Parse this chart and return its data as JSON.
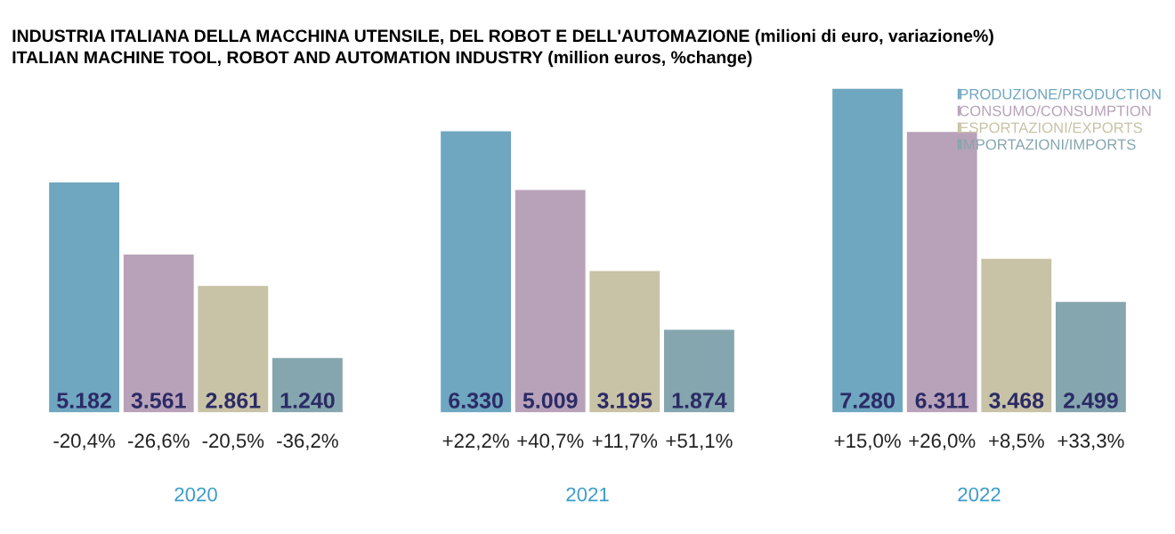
{
  "chart_data": {
    "type": "bar",
    "title": "INDUSTRIA ITALIANA DELLA MACCHINA UTENSILE, DEL ROBOT E DELL'AUTOMAZIONE (milioni di euro, variazione%)",
    "subtitle": "ITALIAN MACHINE TOOL, ROBOT AND AUTOMATION INDUSTRY (million euros, %change)",
    "categories": [
      "2020",
      "2021",
      "2022"
    ],
    "series": [
      {
        "name": "PRODUZIONE/PRODUCTION",
        "color": "#6fa6c0",
        "values": [
          5182,
          6330,
          7280
        ],
        "value_labels": [
          "5.182",
          "6.330",
          "7.280"
        ]
      },
      {
        "name": "CONSUMO/CONSUMPTION",
        "color": "#b8a2b9",
        "values": [
          3561,
          5009,
          6311
        ],
        "value_labels": [
          "3.561",
          "5.009",
          "6.311"
        ]
      },
      {
        "name": "ESPORTAZIONI/EXPORTS",
        "color": "#c8c2a6",
        "values": [
          2861,
          3195,
          3468
        ],
        "value_labels": [
          "2.861",
          "3.195",
          "3.468"
        ]
      },
      {
        "name": "IMPORTAZIONI/IMPORTS",
        "color": "#85a6ae",
        "values": [
          1240,
          1874,
          2499
        ],
        "value_labels": [
          "1.240",
          "1.874",
          "2.499"
        ]
      }
    ],
    "annotations": [
      "-20,4%",
      "-26,6%",
      "-20,5%",
      "-36,2%",
      "+22,2%",
      "+40,7%",
      "+11,7%",
      "+51,1%",
      "+15,0%",
      "+26,0%",
      "+8,5%",
      "+33,3%"
    ],
    "legend": "top right"
  }
}
